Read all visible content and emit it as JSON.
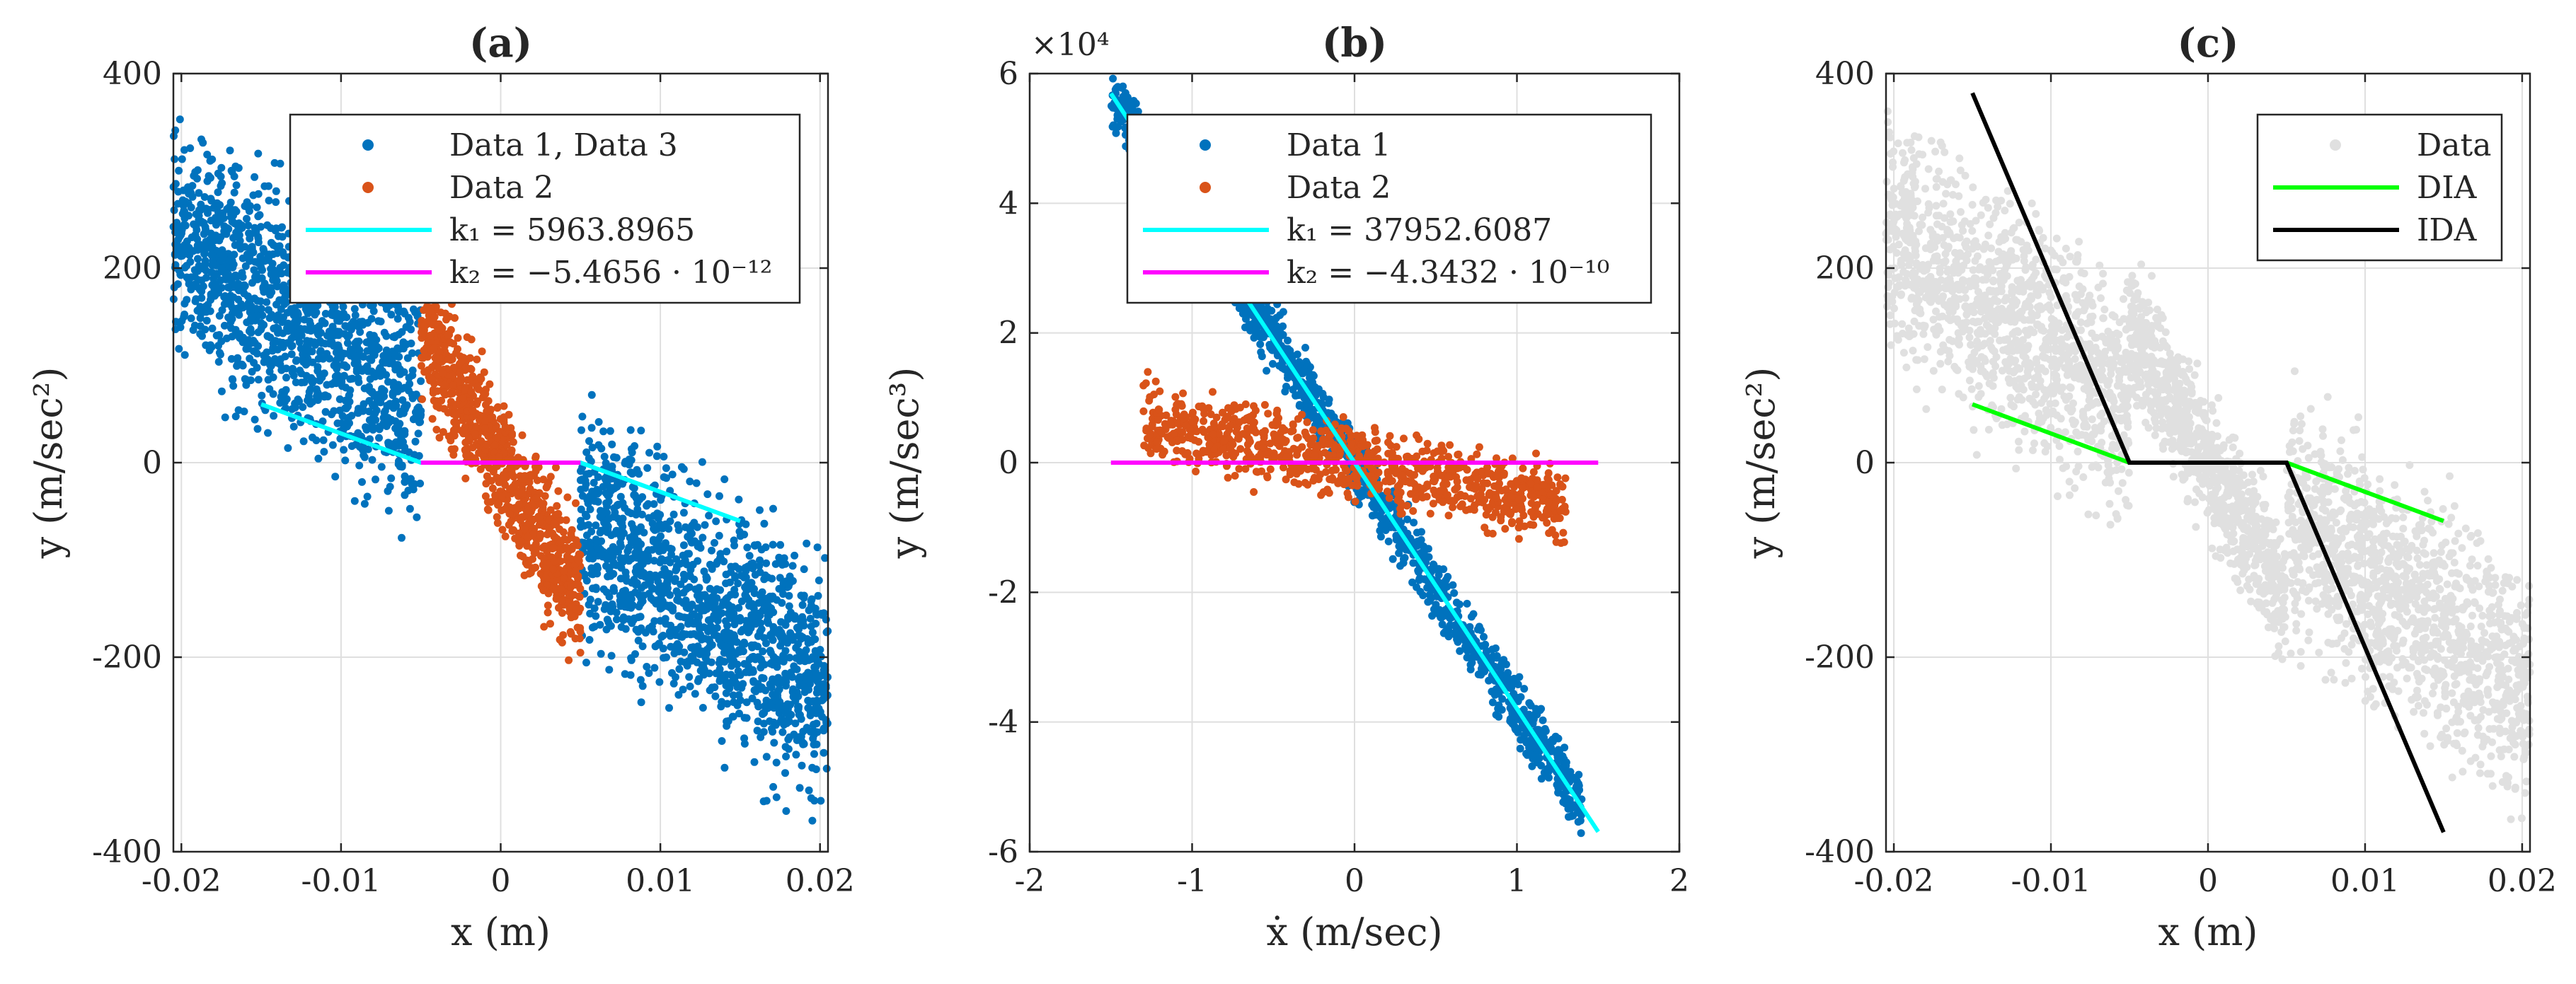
{
  "chart_data": [
    {
      "type": "scatter",
      "panel": "a",
      "title": "(a)",
      "xlabel": "x (m)",
      "ylabel": "y (m/sec²)",
      "xlim": [
        -0.0205,
        0.0205
      ],
      "ylim": [
        -400,
        400
      ],
      "xticks": [
        -0.02,
        -0.01,
        0,
        0.01,
        0.02
      ],
      "xtick_labels": [
        "-0.02",
        "-0.01",
        "0",
        "0.01",
        "0.02"
      ],
      "yticks": [
        -400,
        -200,
        0,
        200,
        400
      ],
      "ytick_labels": [
        "-400",
        "-200",
        "0",
        "200",
        "400"
      ],
      "grid": true,
      "legend_position": "top-right",
      "scatter_series": [
        {
          "name": "Data 1, Data 3",
          "color": "#0072BD",
          "regions": [
            {
              "x": [
                -0.0205,
                -0.005
              ],
              "slope": -11500,
              "spread": 95,
              "n": 1300
            },
            {
              "x": [
                0.005,
                0.0205
              ],
              "slope": -11500,
              "spread": 95,
              "n": 1300
            }
          ]
        },
        {
          "name": "Data 2",
          "color": "#D95319",
          "regions": [
            {
              "x": [
                -0.005,
                0.005
              ],
              "slope": -28000,
              "spread": 55,
              "n": 900
            }
          ]
        }
      ],
      "lines": [
        {
          "name": "k₁ = 5963.8965",
          "color": "#00FFFF",
          "points": [
            [
              -0.015,
              60
            ],
            [
              -0.005,
              0
            ],
            [
              0.005,
              0
            ],
            [
              0.015,
              -60
            ]
          ]
        },
        {
          "name": "k₂ = −5.4656 · 10⁻¹²",
          "color": "#FF00FF",
          "points": [
            [
              -0.005,
              0
            ],
            [
              0.005,
              0
            ]
          ]
        }
      ],
      "legend": [
        {
          "label": "Data 1, Data 3",
          "style": "dot",
          "color": "#0072BD"
        },
        {
          "label": "Data 2",
          "style": "dot",
          "color": "#D95319"
        },
        {
          "label": "k₁ = 5963.8965",
          "style": "line",
          "color": "#00FFFF"
        },
        {
          "label": "k₂ = −5.4656 · 10⁻¹²",
          "style": "line",
          "color": "#FF00FF"
        }
      ]
    },
    {
      "type": "scatter",
      "panel": "b",
      "title": "(b)",
      "xlabel": "ẋ (m/sec)",
      "ylabel": "y (m/sec³)",
      "exponent_label": "×10⁴",
      "xlim": [
        -2,
        2
      ],
      "ylim": [
        -60000,
        60000
      ],
      "xticks": [
        -2,
        -1,
        0,
        1,
        2
      ],
      "xtick_labels": [
        "-2",
        "-1",
        "0",
        "1",
        "2"
      ],
      "yticks": [
        -60000,
        -40000,
        -20000,
        0,
        20000,
        40000,
        60000
      ],
      "ytick_labels": [
        "-6",
        "-4",
        "-2",
        "0",
        "2",
        "4",
        "6"
      ],
      "grid": true,
      "legend_position": "top-right",
      "scatter_series": [
        {
          "name": "Data 1",
          "color": "#0072BD",
          "regions": [
            {
              "x": [
                -1.5,
                1.4
              ],
              "slope": -38000,
              "spread": 4000,
              "n": 1400
            }
          ]
        },
        {
          "name": "Data 2",
          "color": "#D95319",
          "regions": [
            {
              "x": [
                -1.3,
                1.3
              ],
              "slope": -5000,
              "spread": 4500,
              "n": 900
            }
          ]
        }
      ],
      "lines": [
        {
          "name": "k₁ = 37952.6087",
          "color": "#00FFFF",
          "points": [
            [
              -1.5,
              56929
            ],
            [
              1.5,
              -56929
            ]
          ]
        },
        {
          "name": "k₂ = −4.3432 · 10⁻¹⁰",
          "color": "#FF00FF",
          "points": [
            [
              -1.5,
              0
            ],
            [
              1.5,
              0
            ]
          ]
        }
      ],
      "legend": [
        {
          "label": "Data 1",
          "style": "dot",
          "color": "#0072BD"
        },
        {
          "label": "Data 2",
          "style": "dot",
          "color": "#D95319"
        },
        {
          "label": "k₁ = 37952.6087",
          "style": "line",
          "color": "#00FFFF"
        },
        {
          "label": "k₂ = −4.3432 · 10⁻¹⁰",
          "style": "line",
          "color": "#FF00FF"
        }
      ]
    },
    {
      "type": "scatter",
      "panel": "c",
      "title": "(c)",
      "xlabel": "x (m)",
      "ylabel": "y (m/sec²)",
      "xlim": [
        -0.0205,
        0.0205
      ],
      "ylim": [
        -400,
        400
      ],
      "xticks": [
        -0.02,
        -0.01,
        0,
        0.01,
        0.02
      ],
      "xtick_labels": [
        "-0.02",
        "-0.01",
        "0",
        "0.01",
        "0.02"
      ],
      "yticks": [
        -400,
        -200,
        0,
        200,
        400
      ],
      "ytick_labels": [
        "-400",
        "-200",
        "0",
        "200",
        "400"
      ],
      "grid": true,
      "legend_position": "top-right",
      "scatter_series": [
        {
          "name": "Data",
          "color": "#E0E0E0",
          "regions": [
            {
              "x": [
                -0.0205,
                -0.005
              ],
              "slope": -11500,
              "spread": 95,
              "n": 1300
            },
            {
              "x": [
                0.005,
                0.0205
              ],
              "slope": -11500,
              "spread": 95,
              "n": 1300
            },
            {
              "x": [
                -0.005,
                0.005
              ],
              "slope": -28000,
              "spread": 55,
              "n": 900
            }
          ]
        }
      ],
      "lines": [
        {
          "name": "DIA",
          "color": "#00FF00",
          "points": [
            [
              -0.015,
              60
            ],
            [
              -0.005,
              0
            ],
            [
              0.005,
              0
            ],
            [
              0.015,
              -60
            ]
          ]
        },
        {
          "name": "IDA",
          "color": "#000000",
          "points": [
            [
              -0.015,
              380
            ],
            [
              -0.005,
              0
            ],
            [
              0.005,
              0
            ],
            [
              0.015,
              -380
            ]
          ]
        }
      ],
      "legend": [
        {
          "label": "Data",
          "style": "dot",
          "color": "#E0E0E0"
        },
        {
          "label": "DIA",
          "style": "line",
          "color": "#00FF00"
        },
        {
          "label": "IDA",
          "style": "line",
          "color": "#000000"
        }
      ]
    }
  ]
}
